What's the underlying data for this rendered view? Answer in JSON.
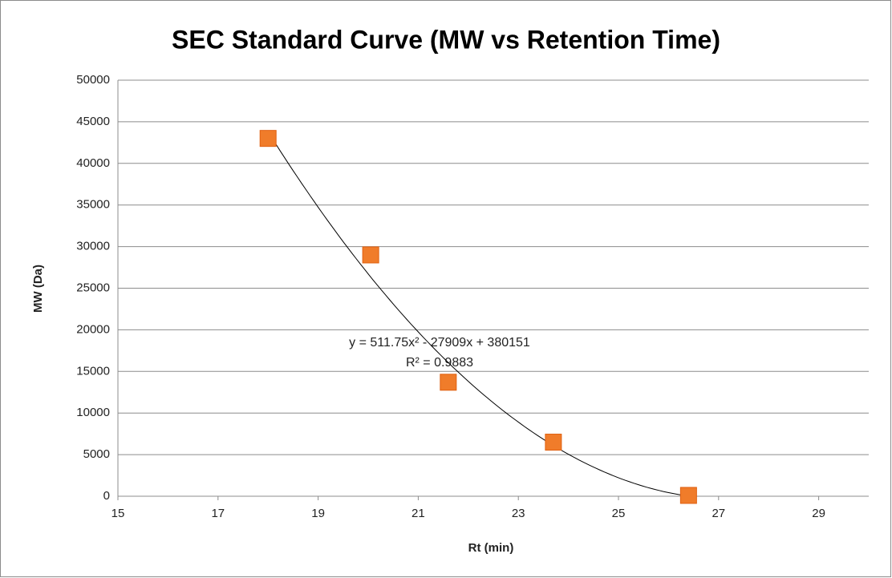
{
  "chart_data": {
    "type": "scatter",
    "title": "SEC Standard Curve (MW vs Retention Time)",
    "x_label": "Rt (min)",
    "y_label": "MW (Da)",
    "x": [
      18,
      20.05,
      21.6,
      23.7,
      26.4
    ],
    "series": [
      {
        "color": "#f07c2a",
        "values": [
          43000,
          29000,
          13700,
          6500,
          100
        ]
      }
    ],
    "xlim": [
      15,
      30
    ],
    "xticks": [
      15,
      17,
      19,
      21,
      23,
      25,
      27,
      29
    ],
    "ylim": [
      0,
      50000
    ],
    "yticks": [
      0,
      5000,
      10000,
      15000,
      20000,
      25000,
      30000,
      35000,
      40000,
      45000,
      50000
    ],
    "grid": true,
    "trendline": {
      "type": "polynomial",
      "order": 2,
      "equation": "y = 511.75x² - 27909x + 380151",
      "r_squared": "R² = 0.9883"
    }
  }
}
